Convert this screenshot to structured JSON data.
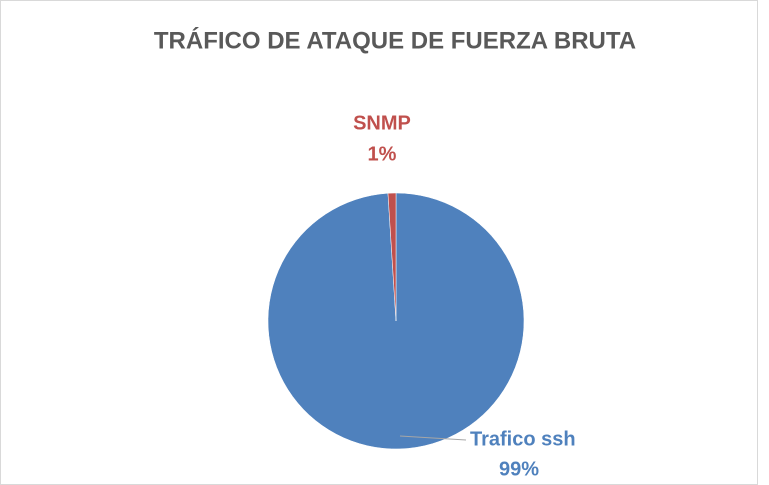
{
  "chart_data": {
    "type": "pie",
    "title": "TRÁFICO DE ATAQUE DE FUERZA BRUTA",
    "categories": [
      "Trafico ssh",
      "SNMP"
    ],
    "values": [
      99,
      1
    ],
    "value_labels": [
      "99%",
      "1%"
    ],
    "colors": [
      "#4f81bd",
      "#c0504d"
    ]
  }
}
